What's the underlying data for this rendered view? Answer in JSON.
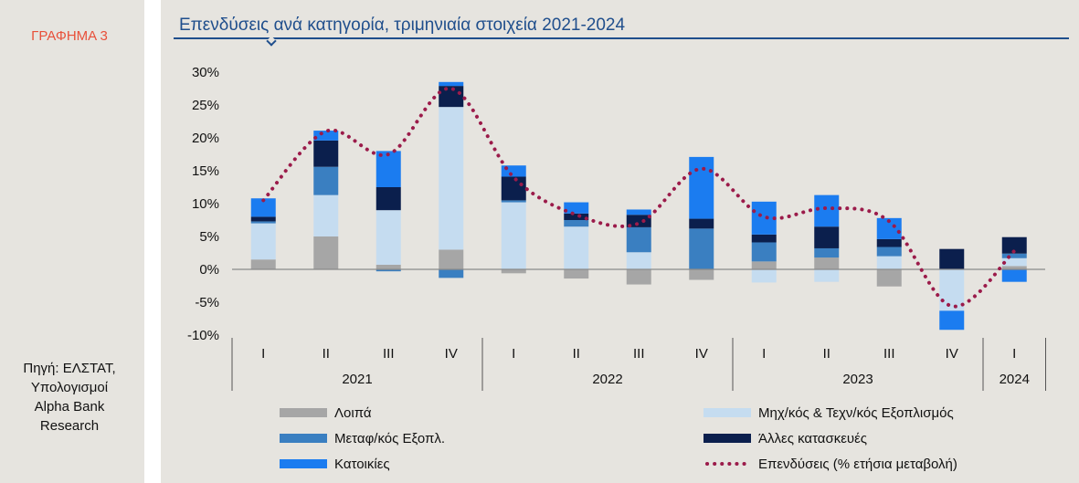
{
  "sidebar": {
    "chart_label": "ΓΡΑΦΗΜΑ 3",
    "source": "Πηγή: ΕΛΣΤΑΤ,\nΥπολογισμοί\nAlpha Bank\nResearch"
  },
  "colors": {
    "Λοιπά": "#a6a6a6",
    "Μηχ/κός & Τεχν/κός Εξοπλισμός": "#c5dcf0",
    "Μεταφ/κός Εξοπλ.": "#3a7fc1",
    "Άλλες κατασκευές": "#0b1f4d",
    "Κατοικίες": "#1b7cf0",
    "Επενδύσεις (% ετήσια μεταβολή)": "#9b1b4a"
  },
  "chart_data": {
    "type": "bar",
    "title": "Επενδύσεις ανά κατηγορία, τριμηνιαία στοιχεία 2021-2024",
    "stacked": true,
    "categories": [
      "I",
      "II",
      "III",
      "IV",
      "I",
      "II",
      "III",
      "IV",
      "I",
      "II",
      "III",
      "IV",
      "I"
    ],
    "years": [
      {
        "label": "2021",
        "count": 4
      },
      {
        "label": "2022",
        "count": 4
      },
      {
        "label": "2023",
        "count": 4
      },
      {
        "label": "2024",
        "count": 1
      }
    ],
    "y_ticks": [
      "30%",
      "25%",
      "20%",
      "15%",
      "10%",
      "5%",
      "0%",
      "-5%",
      "-10%"
    ],
    "ylim": [
      -10,
      30
    ],
    "series": [
      {
        "name": "Λοιπά",
        "values": [
          1.5,
          5.0,
          0.7,
          3.0,
          -0.6,
          -1.4,
          -2.3,
          -1.6,
          1.2,
          1.8,
          -2.6,
          0.0,
          0.5
        ]
      },
      {
        "name": "Μηχ/κός & Τεχν/κός Εξοπλισμός",
        "values": [
          5.5,
          6.3,
          8.3,
          21.7,
          10.2,
          6.5,
          2.6,
          0.0,
          -2.0,
          -1.9,
          2.0,
          -6.3,
          1.2
        ]
      },
      {
        "name": "Μεταφ/κός Εξοπλ.",
        "values": [
          0.3,
          4.3,
          -0.3,
          -1.3,
          0.3,
          1.0,
          3.8,
          6.2,
          2.9,
          1.4,
          1.4,
          0.0,
          0.7
        ]
      },
      {
        "name": "Άλλες κατασκευές",
        "values": [
          0.7,
          4.0,
          3.5,
          3.2,
          3.6,
          1.0,
          1.9,
          1.5,
          1.2,
          3.3,
          1.2,
          3.1,
          2.5
        ]
      },
      {
        "name": "Κατοικίες",
        "values": [
          2.8,
          1.5,
          5.5,
          0.6,
          1.7,
          1.7,
          0.8,
          9.4,
          5.0,
          4.8,
          3.2,
          -2.9,
          -1.9
        ]
      }
    ],
    "line": {
      "name": "Επενδύσεις (% ετήσια μεταβολή)",
      "values": [
        10.5,
        21.0,
        17.5,
        27.5,
        14.0,
        8.3,
        7.0,
        15.3,
        8.0,
        9.3,
        7.3,
        -5.6,
        2.8
      ]
    },
    "legend": {
      "position": "bottom",
      "items": [
        "Λοιπά",
        "Μηχ/κός & Τεχν/κός Εξοπλισμός",
        "Μεταφ/κός Εξοπλ.",
        "Άλλες κατασκευές",
        "Κατοικίες",
        "Επενδύσεις (% ετήσια μεταβολή)"
      ]
    }
  }
}
